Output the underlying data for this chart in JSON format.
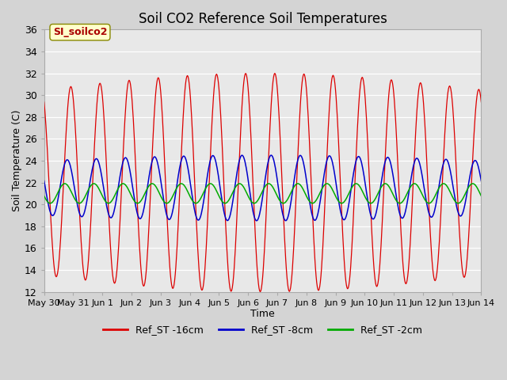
{
  "title": "Soil CO2 Reference Soil Temperatures",
  "xlabel": "Time",
  "ylabel": "Soil Temperature (C)",
  "ylim": [
    12,
    36
  ],
  "yticks": [
    12,
    14,
    16,
    18,
    20,
    22,
    24,
    26,
    28,
    30,
    32,
    34,
    36
  ],
  "fig_bg_color": "#d4d4d4",
  "plot_bg_color": "#e8e8e8",
  "legend_entries": [
    "Ref_ST -16cm",
    "Ref_ST -8cm",
    "Ref_ST -2cm"
  ],
  "line_colors": [
    "#dd0000",
    "#0000cc",
    "#00aa00"
  ],
  "annotation_text": "SI_soilco2",
  "annotation_color": "#aa0000",
  "annotation_bg": "#ffffcc",
  "x_tick_labels": [
    "May 30",
    "May 31",
    "Jun 1",
    "Jun 2",
    "Jun 3",
    "Jun 4",
    "Jun 5",
    "Jun 6",
    "Jun 7",
    "Jun 8",
    "Jun 9",
    "Jun 10",
    "Jun 11",
    "Jun 12",
    "Jun 13",
    "Jun 14"
  ],
  "n_days": 15,
  "figsize": [
    6.4,
    4.8
  ],
  "dpi": 100
}
